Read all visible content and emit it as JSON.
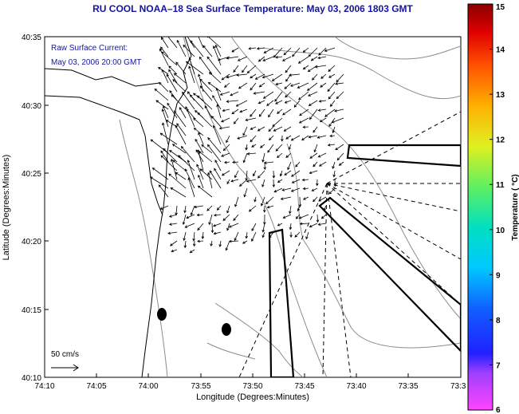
{
  "header": {
    "title": "RU COOL  NOAA–18  Sea Surface Temperature:  May 03, 2006 1803 GMT"
  },
  "legend": {
    "line1": "Raw Surface Current:",
    "line2": "May 03, 2006 20:00 GMT"
  },
  "scale": {
    "label": "50 cm/s"
  },
  "axes": {
    "xlabel": "Longitude (Degrees:Minutes)",
    "ylabel": "Latitude (Degrees:Minutes)",
    "xticks": [
      "74:10",
      "74:05",
      "74:00",
      "73:55",
      "73:50",
      "73:45",
      "73:40",
      "73:35",
      "73:3"
    ],
    "yticks": [
      "40:35",
      "40:30",
      "40:25",
      "40:20",
      "40:15",
      "40:10"
    ]
  },
  "colorbar": {
    "title": "Temperature ( °C)",
    "ticks": [
      "15",
      "14",
      "13",
      "12",
      "11",
      "10",
      "9",
      "8",
      "7",
      "6"
    ],
    "min": 6,
    "max": 15
  },
  "colors": {
    "title": "#1414a0",
    "contour": "#8c8c8c",
    "vectors": "#000000"
  }
}
